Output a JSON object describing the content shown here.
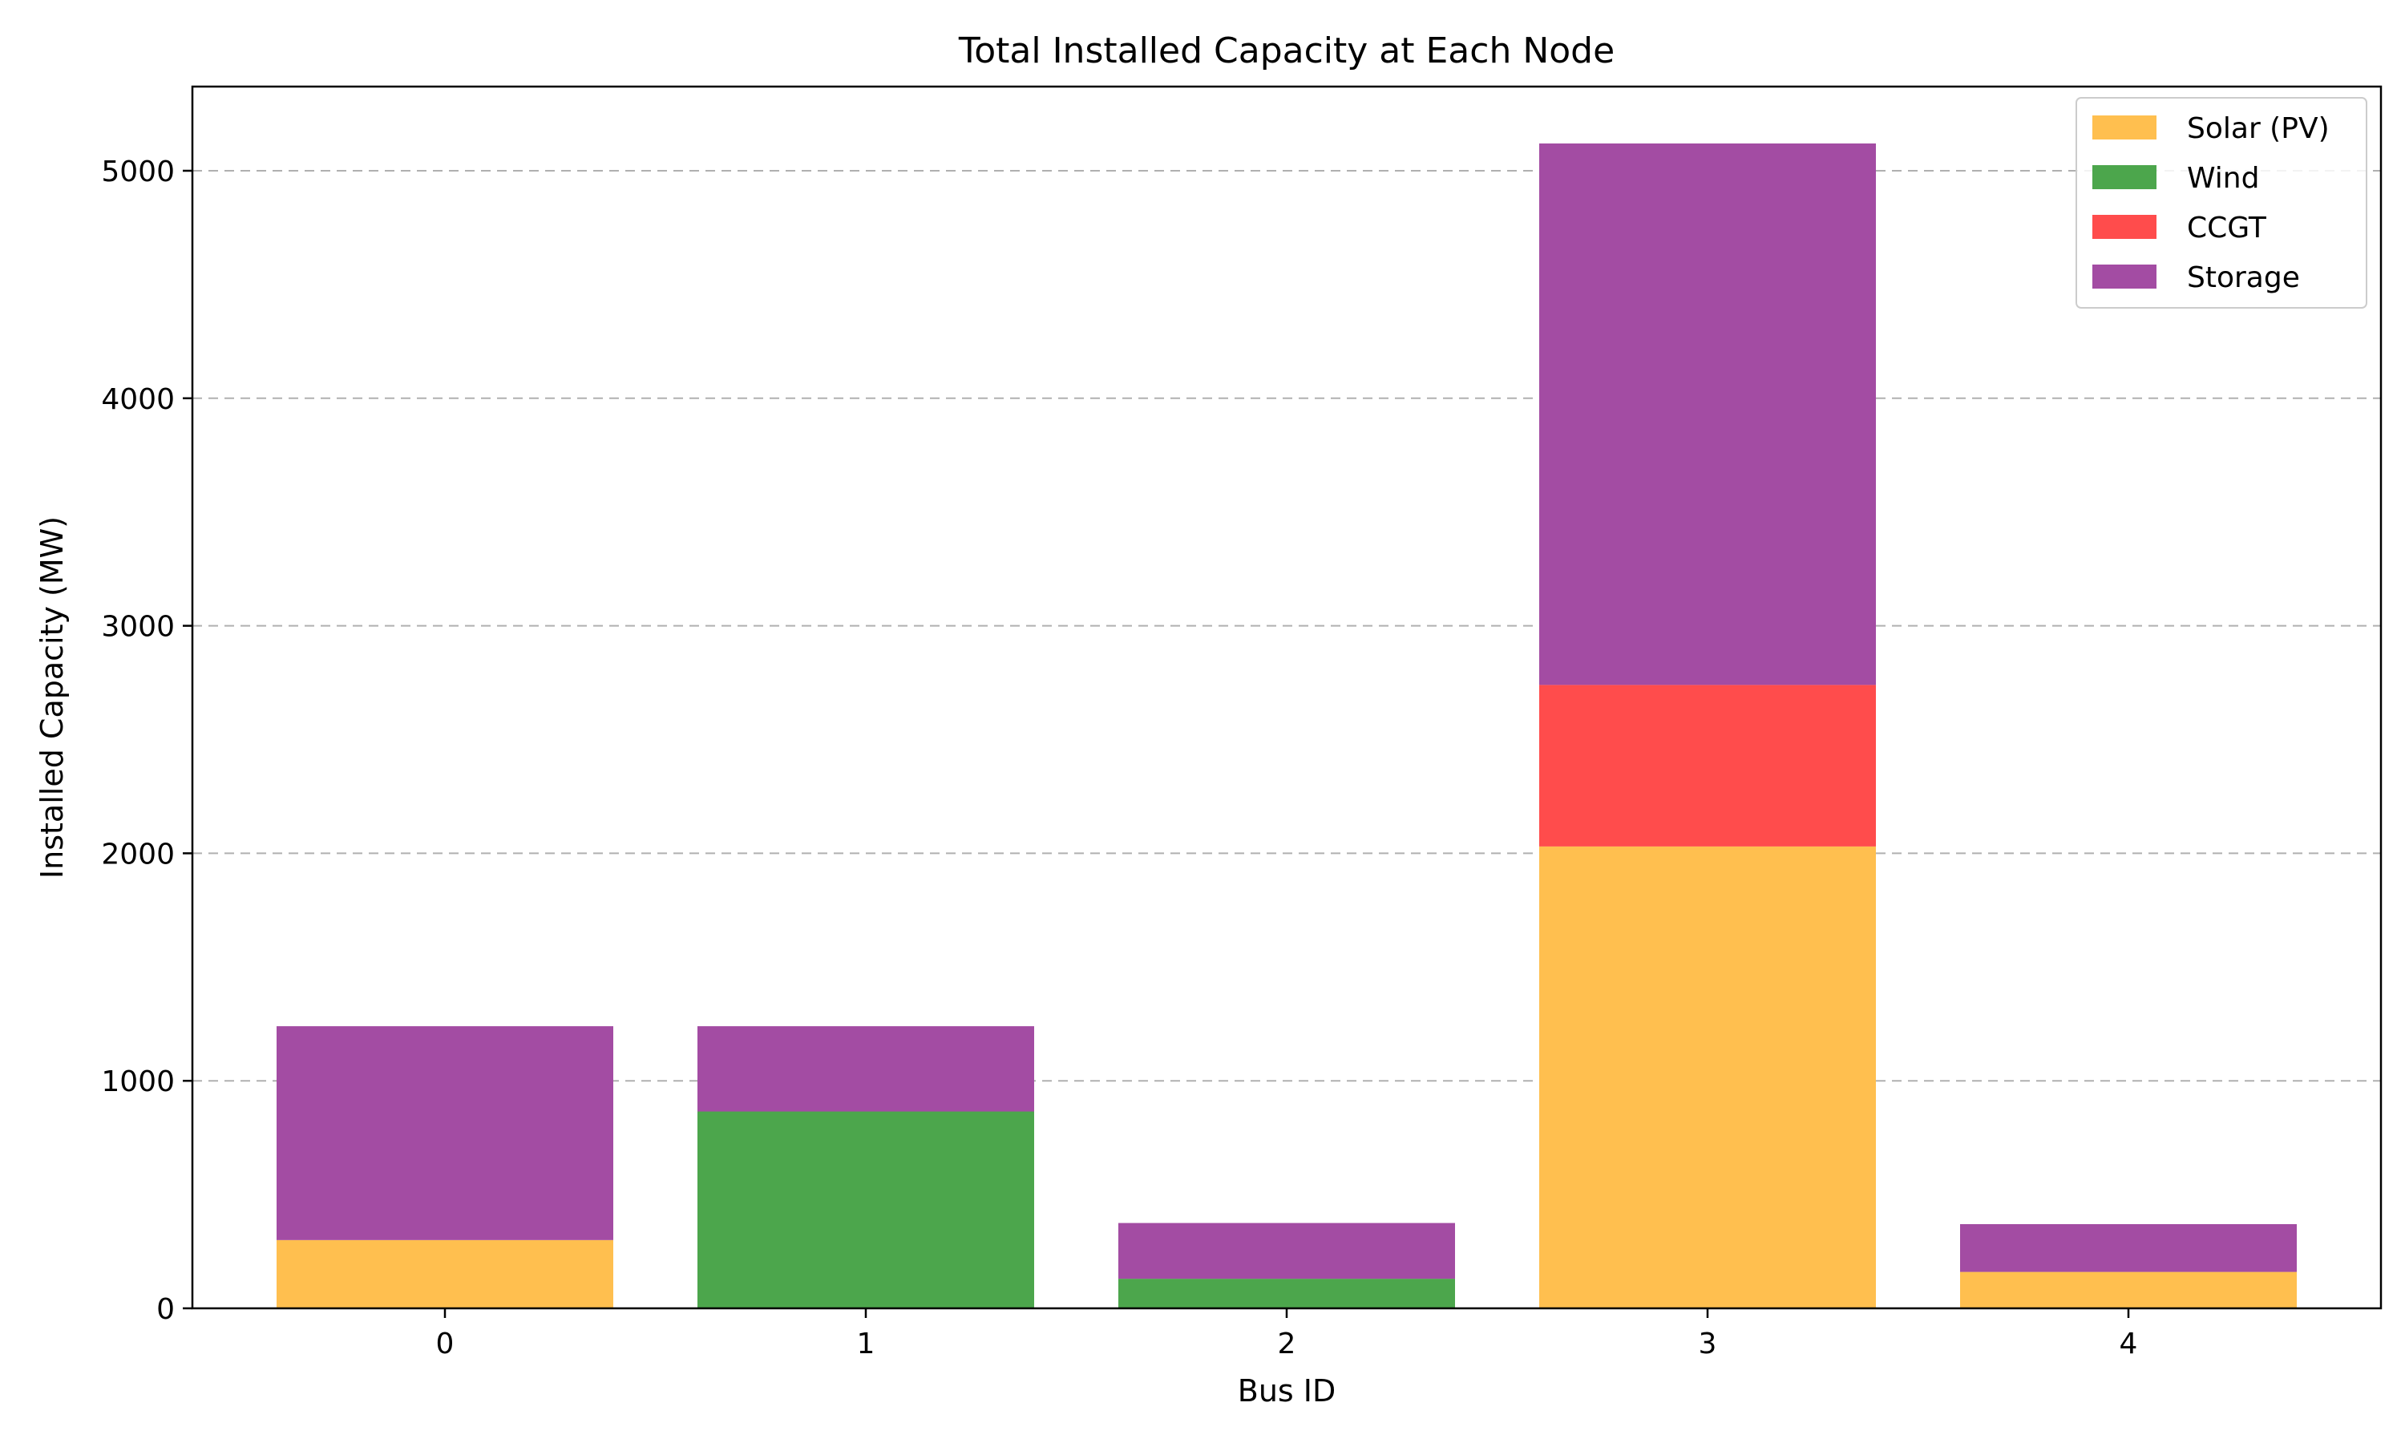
{
  "chart_data": {
    "type": "bar",
    "stacked": true,
    "title": "Total Installed Capacity at Each Node",
    "xlabel": "Bus ID",
    "ylabel": "Installed Capacity (MW)",
    "categories": [
      "0",
      "1",
      "2",
      "3",
      "4"
    ],
    "ylim": [
      0,
      5370
    ],
    "yticks": [
      0,
      1000,
      2000,
      3000,
      4000,
      5000
    ],
    "grid": "y-dashed",
    "legend_position": "top-right",
    "series": [
      {
        "name": "Solar (PV)",
        "color": "#ffbf4f",
        "values": [
          300,
          0,
          0,
          2030,
          160
        ]
      },
      {
        "name": "Wind",
        "color": "#4ca64c",
        "values": [
          0,
          865,
          130,
          0,
          0
        ]
      },
      {
        "name": "CCGT",
        "color": "#ff4c4c",
        "values": [
          0,
          0,
          0,
          710,
          0
        ]
      },
      {
        "name": "Storage",
        "color": "#a34ca3",
        "values": [
          940,
          375,
          245,
          2380,
          210
        ]
      }
    ]
  }
}
